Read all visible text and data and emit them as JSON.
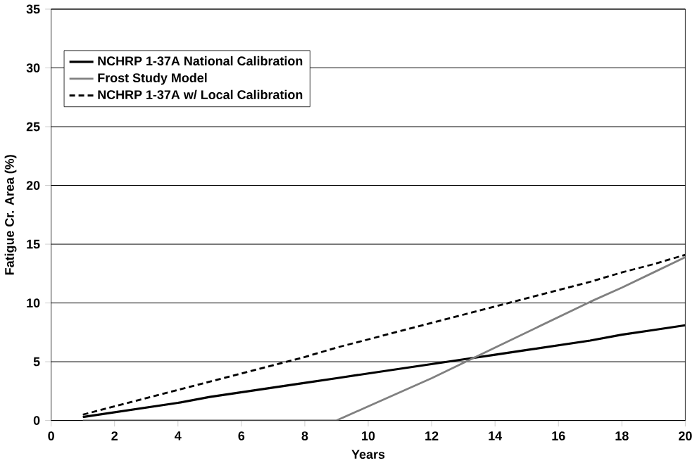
{
  "chart_data": {
    "type": "line",
    "xlabel": "Years",
    "ylabel": "Fatigue Cr. Area (%)",
    "x": [
      1,
      2,
      3,
      4,
      5,
      6,
      7,
      8,
      9,
      10,
      11,
      12,
      13,
      14,
      15,
      16,
      17,
      18,
      19,
      20
    ],
    "series": [
      {
        "name": "NCHRP 1-37A National Calibration",
        "color": "#000000",
        "line_style": "solid",
        "values": [
          0.3,
          0.7,
          1.1,
          1.5,
          2.0,
          2.4,
          2.8,
          3.2,
          3.6,
          4.0,
          4.4,
          4.8,
          5.2,
          5.6,
          6.0,
          6.4,
          6.8,
          7.3,
          7.7,
          8.1
        ]
      },
      {
        "name": "Frost Study Model",
        "color": "#808080",
        "line_style": "solid",
        "values": [
          0,
          0,
          0,
          0,
          0,
          0,
          0,
          0,
          0,
          1.2,
          2.4,
          3.6,
          4.9,
          6.2,
          7.5,
          8.8,
          10.1,
          11.3,
          12.6,
          13.9
        ]
      },
      {
        "name": "NCHRP 1-37A w/ Local Calibration",
        "color": "#000000",
        "line_style": "dashed",
        "values": [
          0.5,
          1.2,
          1.9,
          2.6,
          3.3,
          4.0,
          4.7,
          5.4,
          6.2,
          6.9,
          7.6,
          8.3,
          9.0,
          9.7,
          10.4,
          11.1,
          11.8,
          12.6,
          13.3,
          14.1
        ]
      }
    ],
    "xlim": [
      0,
      20
    ],
    "xticks": [
      0,
      2,
      4,
      6,
      8,
      10,
      12,
      14,
      16,
      18,
      20
    ],
    "ylim": [
      0,
      35
    ],
    "yticks": [
      0,
      5,
      10,
      15,
      20,
      25,
      30,
      35
    ],
    "grid": "y",
    "legend": "top left"
  }
}
